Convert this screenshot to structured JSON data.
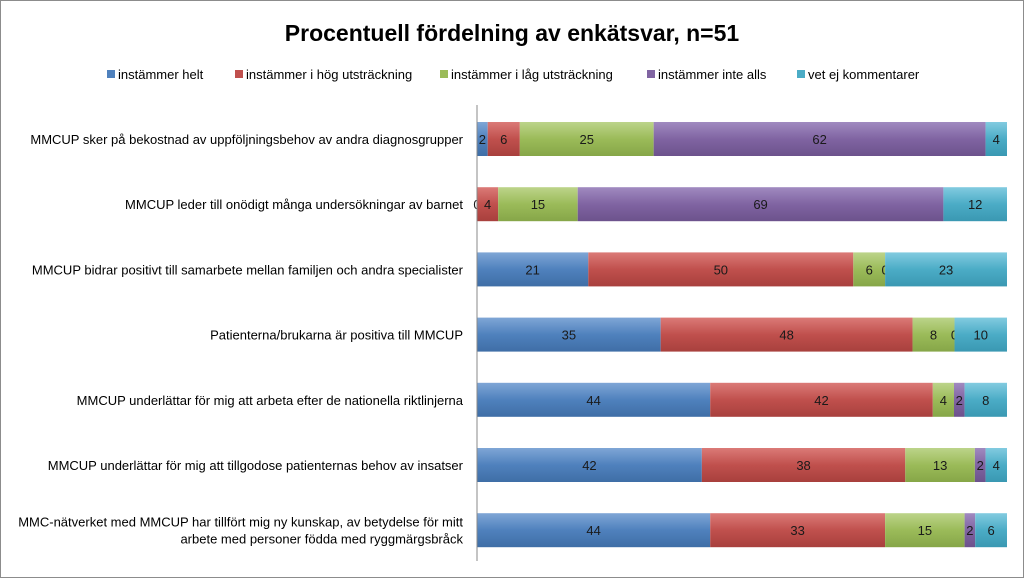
{
  "chart_data": {
    "type": "bar",
    "orientation": "horizontal",
    "stacked": true,
    "title": "Procentuell fördelning av enkätsvar, n=51",
    "xlabel": "",
    "ylabel": "",
    "xlim": [
      0,
      100
    ],
    "grid": false,
    "legend_position": "top",
    "categories": [
      [
        "MMCUP sker på bekostnad av uppföljningsbehov av andra diagnosgrupper"
      ],
      [
        "MMCUP leder till onödigt många undersökningar av barnet"
      ],
      [
        "MMCUP bidrar positivt till samarbete mellan familjen och andra specialister"
      ],
      [
        "Patienterna/brukarna är positiva till MMCUP"
      ],
      [
        "MMCUP underlättar för mig att arbeta efter de nationella riktlinjerna"
      ],
      [
        "MMCUP underlättar för mig att tillgodose patienternas behov av insatser"
      ],
      [
        "MMC-nätverket med MMCUP har tillfört mig ny kunskap, av betydelse för mitt",
        "arbete med personer födda med ryggmärgsbråck"
      ]
    ],
    "series": [
      {
        "name": "instämmer helt",
        "color": "#4f81bd",
        "values": [
          2,
          0,
          21,
          35,
          44,
          42,
          44
        ]
      },
      {
        "name": "instämmer i hög utsträckning",
        "color": "#c0504d",
        "values": [
          6,
          4,
          50,
          48,
          42,
          38,
          33
        ]
      },
      {
        "name": "instämmer i låg utsträckning",
        "color": "#9bbb59",
        "values": [
          25,
          15,
          6,
          8,
          4,
          13,
          15
        ]
      },
      {
        "name": "instämmer inte alls",
        "color": "#8064a2",
        "values": [
          62,
          69,
          0,
          0,
          2,
          2,
          2
        ]
      },
      {
        "name": "vet ej kommentarer",
        "color": "#4bacc6",
        "values": [
          4,
          12,
          23,
          10,
          8,
          4,
          6
        ]
      }
    ]
  }
}
